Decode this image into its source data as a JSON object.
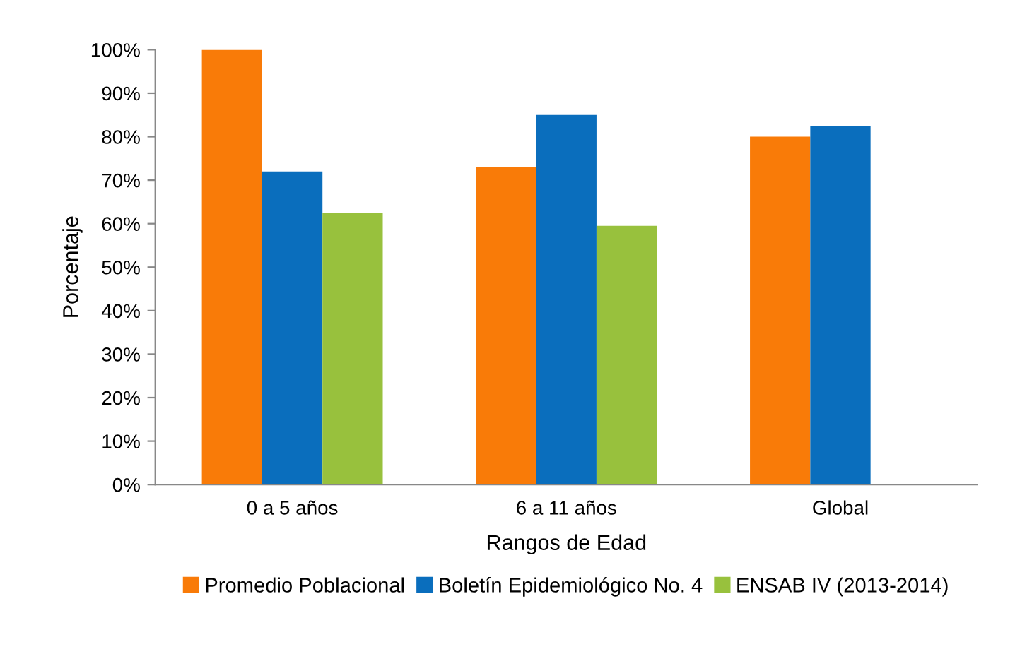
{
  "chart_data": {
    "type": "bar",
    "xlabel": "Rangos de Edad",
    "ylabel": "Porcentaje",
    "categories": [
      "0 a 5 años",
      "6 a 11 años",
      "Global"
    ],
    "series": [
      {
        "name": "Promedio Poblacional",
        "color": "#f97b08",
        "values": [
          100,
          73,
          80
        ]
      },
      {
        "name": "Boletín Epidemiológico No. 4",
        "color": "#0a6ebd",
        "values": [
          72,
          85,
          82.5
        ]
      },
      {
        "name": "ENSAB IV (2013-2014)",
        "color": "#98c13d",
        "values": [
          62.5,
          59.5,
          null
        ]
      }
    ],
    "ylim": [
      0,
      100
    ],
    "yticks": [
      {
        "value": 0,
        "label": "0%"
      },
      {
        "value": 10,
        "label": "10%"
      },
      {
        "value": 20,
        "label": "20%"
      },
      {
        "value": 30,
        "label": "30%"
      },
      {
        "value": 40,
        "label": "40%"
      },
      {
        "value": 50,
        "label": "50%"
      },
      {
        "value": 60,
        "label": "60%"
      },
      {
        "value": 70,
        "label": "70%"
      },
      {
        "value": 80,
        "label": "80%"
      },
      {
        "value": 90,
        "label": "90%"
      },
      {
        "value": 100,
        "label": "100%"
      }
    ],
    "grid": false,
    "legend": "bottom"
  }
}
